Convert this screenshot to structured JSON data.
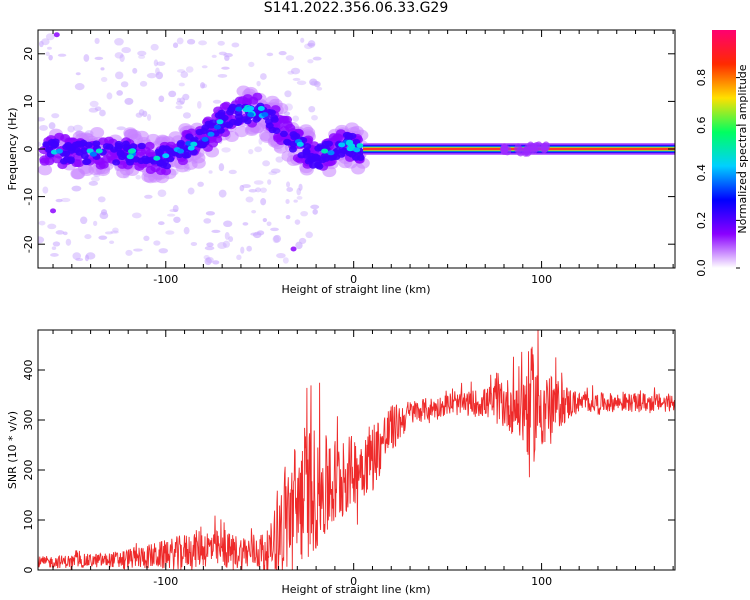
{
  "title": "S141.2022.356.06.33.G29",
  "chart_data": [
    {
      "type": "heatmap",
      "xlabel": "Height of straight line (km)",
      "ylabel": "Frequency (Hz)",
      "xlim": [
        -168,
        171
      ],
      "ylim": [
        -25,
        25
      ],
      "x_ticks": [
        "-100",
        "0",
        "100"
      ],
      "y_ticks": [
        "-20",
        "-10",
        "0",
        "10",
        "20"
      ],
      "colorbar": {
        "label": "Normalized spectral amplitude",
        "range": [
          0,
          1
        ],
        "ticks": [
          "0.0",
          "0.2",
          "0.4",
          "0.6",
          "0.8"
        ],
        "colors": [
          "#ffffff",
          "#8a00ff",
          "#0000ff",
          "#00d0ff",
          "#00ff60",
          "#ffe000",
          "#ff2a00",
          "#ff0070"
        ]
      },
      "ridge": [
        {
          "x": -165,
          "y": 0
        },
        {
          "x": -140,
          "y": -1
        },
        {
          "x": -120,
          "y": -1
        },
        {
          "x": -100,
          "y": -2
        },
        {
          "x": -90,
          "y": 0
        },
        {
          "x": -80,
          "y": 2
        },
        {
          "x": -70,
          "y": 6
        },
        {
          "x": -60,
          "y": 8
        },
        {
          "x": -50,
          "y": 8
        },
        {
          "x": -40,
          "y": 5
        },
        {
          "x": -30,
          "y": 1
        },
        {
          "x": -20,
          "y": -2
        },
        {
          "x": -10,
          "y": 0
        },
        {
          "x": -5,
          "y": 1
        },
        {
          "x": 5,
          "y": 0
        },
        {
          "x": 171,
          "y": 0
        }
      ],
      "carrier": {
        "from": 5,
        "to": 171,
        "y": 0
      }
    },
    {
      "type": "line",
      "xlabel": "Height of straight line (km)",
      "ylabel": "SNR (10 * v/v)",
      "xlim": [
        -168,
        171
      ],
      "ylim": [
        0,
        480
      ],
      "x_ticks": [
        "-100",
        "0",
        "100"
      ],
      "y_ticks": [
        "0",
        "100",
        "200",
        "300",
        "400"
      ],
      "color": "#ee2a2a",
      "envelope": [
        {
          "x": -168,
          "mean": 15,
          "amp": 12
        },
        {
          "x": -130,
          "mean": 20,
          "amp": 15
        },
        {
          "x": -100,
          "mean": 30,
          "amp": 30
        },
        {
          "x": -80,
          "mean": 45,
          "amp": 40
        },
        {
          "x": -60,
          "mean": 35,
          "amp": 35
        },
        {
          "x": -45,
          "mean": 40,
          "amp": 40
        },
        {
          "x": -35,
          "mean": 110,
          "amp": 120
        },
        {
          "x": -25,
          "mean": 160,
          "amp": 140
        },
        {
          "x": -15,
          "mean": 160,
          "amp": 110
        },
        {
          "x": 0,
          "mean": 200,
          "amp": 70
        },
        {
          "x": 10,
          "mean": 230,
          "amp": 70
        },
        {
          "x": 20,
          "mean": 280,
          "amp": 50
        },
        {
          "x": 30,
          "mean": 315,
          "amp": 25
        },
        {
          "x": 50,
          "mean": 330,
          "amp": 20
        },
        {
          "x": 70,
          "mean": 335,
          "amp": 30
        },
        {
          "x": 85,
          "mean": 330,
          "amp": 60
        },
        {
          "x": 95,
          "mean": 330,
          "amp": 120
        },
        {
          "x": 105,
          "mean": 330,
          "amp": 60
        },
        {
          "x": 120,
          "mean": 335,
          "amp": 20
        },
        {
          "x": 171,
          "mean": 335,
          "amp": 18
        }
      ]
    }
  ]
}
